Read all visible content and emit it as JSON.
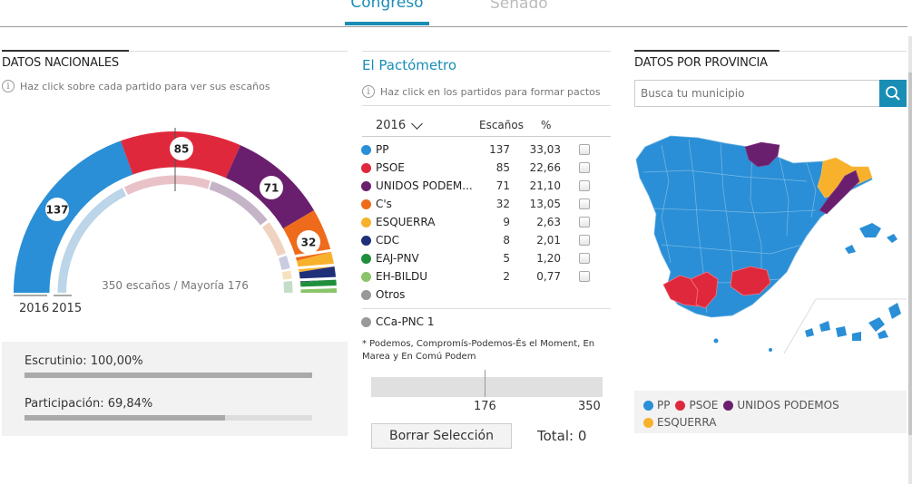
{
  "tabs": {
    "congreso": "Congreso",
    "senado": "Senado"
  },
  "left": {
    "title": "DATOS NACIONALES",
    "hint": "Haz click sobre cada partido para ver sus escaños",
    "hemicycle_caption": "350 escaños / Mayoría 176",
    "year_outer": "2016",
    "year_inner": "2015",
    "seat_labels": {
      "pp": "137",
      "psoe": "85",
      "up": "71",
      "cs": "32"
    },
    "stats": {
      "escrutinio_label": "Escrutinio: 100,00%",
      "escrutinio_pct": 100,
      "participacion_label": "Participación: 69,84%",
      "participacion_pct": 69.84
    }
  },
  "middle": {
    "title": "El Pactómetro",
    "hint": "Haz click en los partidos para formar pactos",
    "year": "2016",
    "col_seats": "Escaños",
    "col_pct": "%",
    "parties": [
      {
        "name": "PP",
        "seats": "137",
        "pct": "33,03",
        "color": "#2a8fd6"
      },
      {
        "name": "PSOE",
        "seats": "85",
        "pct": "22,66",
        "color": "#e0283c"
      },
      {
        "name": "UNIDOS PODEM...",
        "seats": "71",
        "pct": "21,10",
        "color": "#6a1f6e"
      },
      {
        "name": "C's",
        "seats": "32",
        "pct": "13,05",
        "color": "#ee6b1b"
      },
      {
        "name": "ESQUERRA",
        "seats": "9",
        "pct": "2,63",
        "color": "#f8b12c"
      },
      {
        "name": "CDC",
        "seats": "8",
        "pct": "2,01",
        "color": "#1f2f7a"
      },
      {
        "name": "EAJ-PNV",
        "seats": "5",
        "pct": "1,20",
        "color": "#208f3c"
      },
      {
        "name": "EH-BILDU",
        "seats": "2",
        "pct": "0,77",
        "color": "#8ac46b"
      },
      {
        "name": "Otros",
        "seats": "",
        "pct": "",
        "color": "#999999"
      }
    ],
    "extra_party": {
      "name": "CCa-PNC 1",
      "color": "#999999"
    },
    "footnote": "* Podemos, Compromís-Podemos-És el Moment, En Marea y En Comú Podem",
    "scale_mid": "176",
    "scale_max": "350",
    "clear_button": "Borrar Selección",
    "total_label": "Total:",
    "total_value": "0"
  },
  "right": {
    "title": "DATOS POR PROVINCIA",
    "search_placeholder": "Busca tu municipio",
    "legend": [
      {
        "name": "PP",
        "color": "#2a8fd6"
      },
      {
        "name": "PSOE",
        "color": "#e0283c"
      },
      {
        "name": "UNIDOS PODEMOS",
        "color": "#6a1f6e"
      },
      {
        "name": "ESQUERRA",
        "color": "#f8b12c"
      }
    ]
  },
  "colors": {
    "accent": "#1a8db5",
    "pp": "#2a8fd6",
    "psoe": "#e0283c",
    "up": "#6a1f6e",
    "cs": "#ee6b1b",
    "erc": "#f8b12c",
    "cdc": "#1f2f7a",
    "pnv": "#208f3c",
    "bildu": "#8ac46b"
  }
}
